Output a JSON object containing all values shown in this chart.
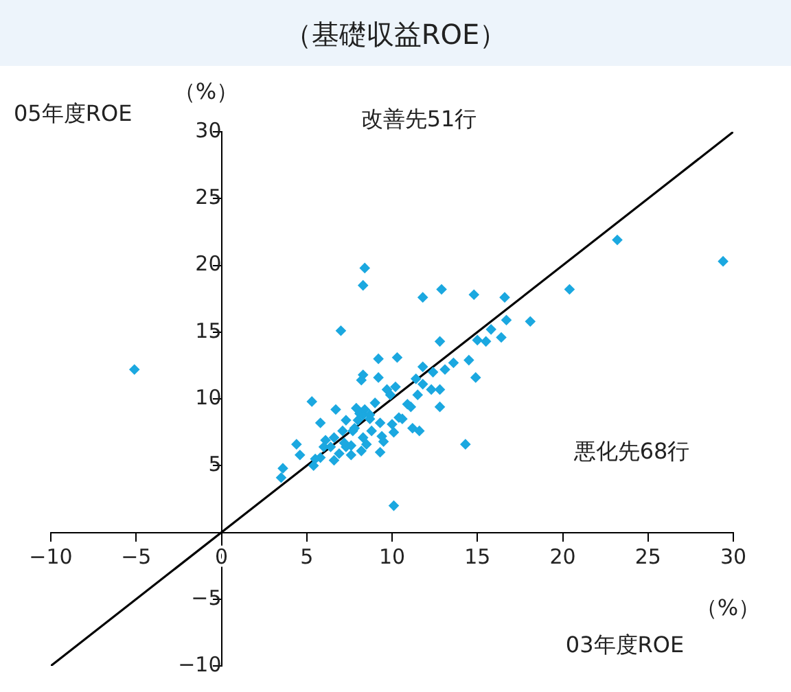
{
  "chart_data": {
    "type": "scatter",
    "title": "（基礎収益ROE）",
    "xlabel": "03年度ROE",
    "ylabel": "05年度ROE",
    "annotations": [
      "（%）",
      "（%）",
      "改善先51行",
      "悪化先68行"
    ],
    "xlim": [
      -10,
      30
    ],
    "xticks": [
      -10,
      -5,
      0,
      5,
      10,
      15,
      20,
      25,
      30
    ],
    "ylim": [
      -10,
      30
    ],
    "yticks": [
      -10,
      -5,
      5,
      10,
      15,
      20,
      25,
      30
    ],
    "grid": false,
    "legend": false,
    "marker": "diamond",
    "series": [
      {
        "type": "scatter",
        "color": "#1ba8e0",
        "x": [
          8.4,
          8.3,
          7.0,
          11.8,
          12.9,
          14.8,
          16.6,
          18.1,
          16.7,
          15.8,
          15.0,
          15.5,
          16.4,
          12.8,
          9.2,
          10.3,
          11.8,
          12.4,
          13.1,
          13.6,
          14.5,
          14.9,
          8.3,
          8.2,
          9.2,
          11.4,
          9.7,
          10.2,
          9.9,
          11.8,
          12.3,
          12.8,
          11.5,
          12.8,
          5.3,
          6.7,
          5.8,
          7.3,
          7.9,
          8.4,
          9.0,
          8.3,
          8.7,
          9.3,
          10.0,
          10.4,
          10.9,
          11.1,
          10.6,
          11.2,
          11.6,
          8.0,
          7.8,
          7.1,
          6.6,
          6.1,
          6.0,
          4.4,
          4.6,
          5.4,
          5.5,
          5.8,
          6.6,
          6.9,
          7.6,
          8.2,
          7.6,
          8.3,
          8.8,
          9.4,
          9.5,
          9.3,
          10.1,
          3.6,
          3.5,
          14.3,
          10.1,
          6.4,
          7.3,
          8.5,
          8.1,
          8.7,
          7.7,
          7.2,
          23.2,
          29.4,
          20.4,
          -5.1
        ],
        "values": [
          19.8,
          18.5,
          15.1,
          17.6,
          18.2,
          17.8,
          17.6,
          15.8,
          15.9,
          15.2,
          14.4,
          14.3,
          14.6,
          14.3,
          13.0,
          13.1,
          12.4,
          12.0,
          12.2,
          12.7,
          12.9,
          11.6,
          11.8,
          11.4,
          11.6,
          11.5,
          10.7,
          10.9,
          10.3,
          11.1,
          10.7,
          10.7,
          10.3,
          9.4,
          9.8,
          9.2,
          8.2,
          8.4,
          9.3,
          9.2,
          9.7,
          8.8,
          8.5,
          8.2,
          8.1,
          8.6,
          9.6,
          9.4,
          8.5,
          7.8,
          7.6,
          8.4,
          7.8,
          7.6,
          7.1,
          6.9,
          6.4,
          6.6,
          5.8,
          5.0,
          5.5,
          5.6,
          5.4,
          5.9,
          5.8,
          6.1,
          6.5,
          7.1,
          7.6,
          7.2,
          6.8,
          6.0,
          7.5,
          4.8,
          4.1,
          6.6,
          2.0,
          6.4,
          6.4,
          6.6,
          8.9,
          8.8,
          7.6,
          6.7,
          21.9,
          20.3,
          18.2,
          12.2
        ]
      },
      {
        "type": "line",
        "color": "#000000",
        "marker": "none",
        "line_style": "solid",
        "x": [
          -10,
          30
        ],
        "values": [
          -10,
          30
        ]
      }
    ]
  }
}
